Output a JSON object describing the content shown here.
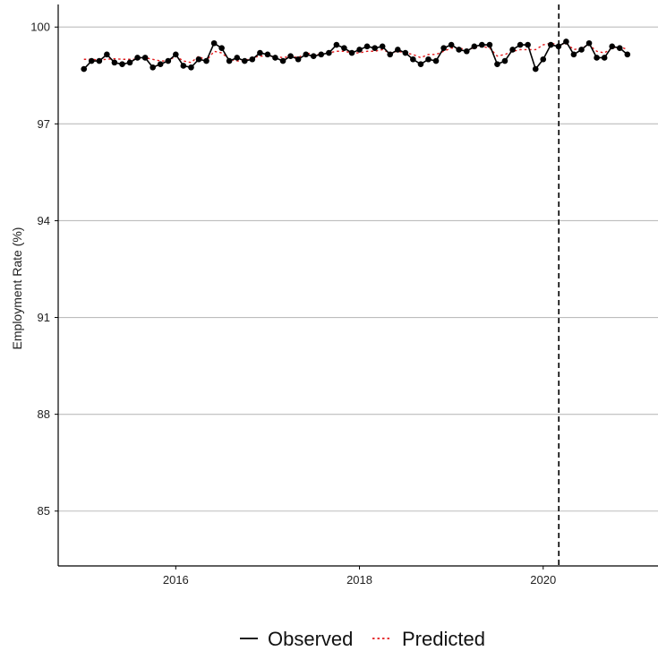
{
  "chart_data": {
    "type": "line",
    "title": "",
    "xlabel": "",
    "ylabel": "Employment Rate (%)",
    "xlim": [
      2014.72,
      2021.25
    ],
    "ylim": [
      83.3,
      100.7
    ],
    "y_ticks": [
      85,
      88,
      91,
      94,
      97,
      100
    ],
    "x_ticks": [
      2016,
      2018,
      2020
    ],
    "grid": "horizontal major",
    "legend_position": "bottom",
    "vertical_marker": {
      "x": 2020.17,
      "style": "dashed",
      "color": "#000000"
    },
    "x": [
      2015.0,
      2015.083,
      2015.167,
      2015.25,
      2015.333,
      2015.417,
      2015.5,
      2015.583,
      2015.667,
      2015.75,
      2015.833,
      2015.917,
      2016.0,
      2016.083,
      2016.167,
      2016.25,
      2016.333,
      2016.417,
      2016.5,
      2016.583,
      2016.667,
      2016.75,
      2016.833,
      2016.917,
      2017.0,
      2017.083,
      2017.167,
      2017.25,
      2017.333,
      2017.417,
      2017.5,
      2017.583,
      2017.667,
      2017.75,
      2017.833,
      2017.917,
      2018.0,
      2018.083,
      2018.167,
      2018.25,
      2018.333,
      2018.417,
      2018.5,
      2018.583,
      2018.667,
      2018.75,
      2018.833,
      2018.917,
      2019.0,
      2019.083,
      2019.167,
      2019.25,
      2019.333,
      2019.417,
      2019.5,
      2019.583,
      2019.667,
      2019.75,
      2019.833,
      2019.917,
      2020.0,
      2020.083,
      2020.167,
      2020.25,
      2020.333,
      2020.417,
      2020.5,
      2020.583,
      2020.667,
      2020.75,
      2020.833,
      2020.917
    ],
    "series": [
      {
        "name": "Observed",
        "color": "#000000",
        "style": "solid",
        "markers": true,
        "values": [
          98.7,
          98.95,
          98.95,
          99.15,
          98.9,
          98.85,
          98.9,
          99.05,
          99.05,
          98.75,
          98.85,
          98.95,
          99.15,
          98.8,
          98.75,
          99.0,
          98.95,
          99.5,
          99.35,
          98.95,
          99.05,
          98.95,
          99.0,
          99.2,
          99.15,
          99.05,
          98.95,
          99.1,
          99.0,
          99.15,
          99.1,
          99.15,
          99.2,
          99.45,
          99.35,
          99.2,
          99.3,
          99.4,
          99.35,
          99.4,
          99.15,
          99.3,
          99.2,
          99.0,
          98.85,
          99.0,
          98.95,
          99.35,
          99.45,
          99.3,
          99.25,
          99.4,
          99.45,
          99.45,
          98.85,
          98.95,
          99.3,
          99.45,
          99.45,
          98.7,
          99.0,
          99.45,
          99.4,
          99.55,
          99.15,
          99.3,
          99.5,
          99.05,
          99.05,
          99.4,
          99.35,
          99.15
        ]
      },
      {
        "name": "Predicted",
        "color": "#e31a1c",
        "style": "dotted",
        "markers": false,
        "values": [
          99.0,
          99.0,
          98.98,
          99.0,
          99.02,
          99.0,
          99.0,
          99.0,
          99.05,
          99.0,
          98.95,
          98.95,
          99.1,
          98.95,
          98.9,
          99.1,
          98.95,
          99.25,
          99.2,
          99.0,
          98.95,
          98.95,
          99.05,
          99.1,
          99.1,
          99.1,
          99.05,
          99.1,
          99.05,
          99.2,
          99.15,
          99.15,
          99.2,
          99.25,
          99.25,
          99.2,
          99.2,
          99.25,
          99.25,
          99.3,
          99.2,
          99.25,
          99.2,
          99.15,
          99.05,
          99.15,
          99.15,
          99.25,
          99.35,
          99.35,
          99.3,
          99.35,
          99.4,
          99.35,
          99.1,
          99.15,
          99.25,
          99.3,
          99.3,
          99.3,
          99.45,
          99.5,
          99.45,
          99.5,
          99.3,
          99.35,
          99.45,
          99.25,
          99.2,
          99.35,
          99.4,
          99.3
        ]
      }
    ],
    "labels": {
      "y_ticks": [
        "85",
        "88",
        "91",
        "94",
        "97",
        "100"
      ],
      "x_ticks": [
        "2016",
        "2018",
        "2020"
      ]
    },
    "legend": [
      "Observed",
      "Predicted"
    ]
  }
}
